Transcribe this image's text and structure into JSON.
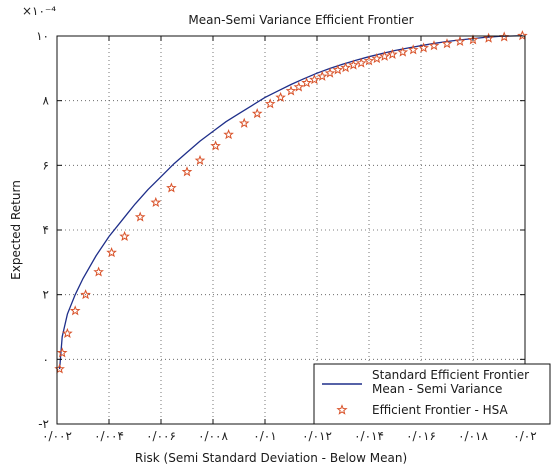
{
  "chart_data": {
    "type": "line",
    "title": "Mean-Semi Variance Efficient Frontier",
    "xlabel": "Risk (Semi Standard Deviation - Below Mean)",
    "ylabel": "Expected Return",
    "y_multiplier_label": "×۱۰⁻⁴",
    "xlim": [
      0.002,
      0.02
    ],
    "ylim": [
      -2,
      10
    ],
    "grid": true,
    "legend_placement": "bottom-right",
    "x_tick_values": [
      0.002,
      0.004,
      0.006,
      0.008,
      0.01,
      0.012,
      0.014,
      0.016,
      0.018,
      0.02
    ],
    "x_tick_labels": [
      "۰/۰۰۲",
      "۰/۰۰۴",
      "۰/۰۰۶",
      "۰/۰۰۸",
      "۰/۰۱",
      "۰/۰۱۲",
      "۰/۰۱۴",
      "۰/۰۱۶",
      "۰/۰۱۸",
      "۰/۰۲"
    ],
    "y_tick_values": [
      -2,
      0,
      2,
      4,
      6,
      8,
      10
    ],
    "y_tick_labels": [
      "-۲",
      "۰",
      "۲",
      "۴",
      "۶",
      "۸",
      "۱۰"
    ],
    "series": [
      {
        "name": "Standard Efficient Frontier Mean - Semi Variance",
        "color": "#1f2f8a",
        "style": "line",
        "x": [
          0.0021,
          0.0022,
          0.0024,
          0.0027,
          0.003,
          0.0035,
          0.004,
          0.0045,
          0.005,
          0.0055,
          0.006,
          0.0065,
          0.007,
          0.0075,
          0.008,
          0.0085,
          0.009,
          0.0095,
          0.01,
          0.0105,
          0.011,
          0.0115,
          0.012,
          0.0125,
          0.013,
          0.0135,
          0.014,
          0.0145,
          0.015,
          0.0155,
          0.016,
          0.0165,
          0.017,
          0.0175,
          0.018,
          0.0185,
          0.019,
          0.0195,
          0.0199
        ],
        "y": [
          -0.3,
          0.7,
          1.4,
          2.0,
          2.5,
          3.2,
          3.8,
          4.3,
          4.8,
          5.25,
          5.65,
          6.05,
          6.4,
          6.75,
          7.05,
          7.35,
          7.6,
          7.85,
          8.1,
          8.3,
          8.5,
          8.68,
          8.85,
          9.0,
          9.13,
          9.25,
          9.36,
          9.46,
          9.55,
          9.63,
          9.7,
          9.77,
          9.83,
          9.88,
          9.92,
          9.96,
          9.99,
          10.0,
          10.01
        ]
      },
      {
        "name": "Efficient Frontier - HSA",
        "color": "#d9532a",
        "style": "star-markers",
        "x": [
          0.0021,
          0.0022,
          0.0024,
          0.0027,
          0.0031,
          0.0036,
          0.0041,
          0.0046,
          0.0052,
          0.0058,
          0.0064,
          0.007,
          0.0075,
          0.0081,
          0.0086,
          0.0092,
          0.0097,
          0.0102,
          0.0106,
          0.011,
          0.0113,
          0.0116,
          0.0119,
          0.0122,
          0.0125,
          0.0128,
          0.0131,
          0.0134,
          0.0137,
          0.014,
          0.0143,
          0.0146,
          0.0149,
          0.0153,
          0.0157,
          0.0161,
          0.0165,
          0.017,
          0.0175,
          0.018,
          0.0186,
          0.0192,
          0.0199
        ],
        "y": [
          -0.3,
          0.2,
          0.8,
          1.5,
          2.0,
          2.7,
          3.3,
          3.8,
          4.4,
          4.85,
          5.3,
          5.8,
          6.15,
          6.6,
          6.95,
          7.3,
          7.6,
          7.9,
          8.1,
          8.3,
          8.42,
          8.55,
          8.65,
          8.75,
          8.85,
          8.95,
          9.02,
          9.1,
          9.16,
          9.23,
          9.3,
          9.37,
          9.43,
          9.5,
          9.57,
          9.63,
          9.7,
          9.76,
          9.83,
          9.88,
          9.93,
          9.97,
          10.01
        ]
      }
    ]
  }
}
